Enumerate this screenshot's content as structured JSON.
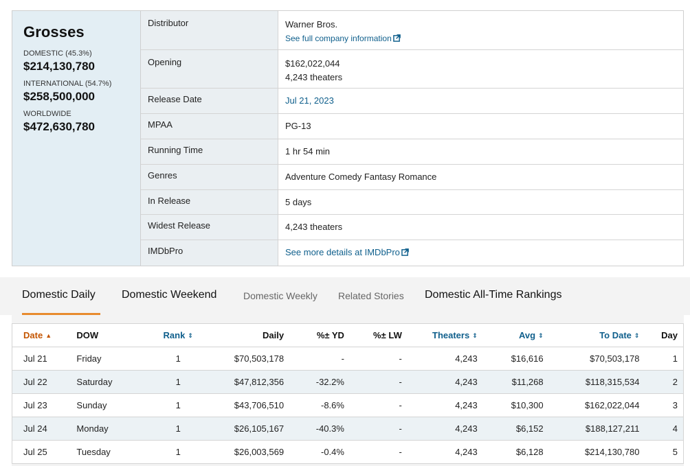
{
  "grosses": {
    "title": "Grosses",
    "domestic_label": "DOMESTIC (45.3%)",
    "domestic_value": "$214,130,780",
    "international_label": "INTERNATIONAL (54.7%)",
    "international_value": "$258,500,000",
    "worldwide_label": "WORLDWIDE",
    "worldwide_value": "$472,630,780"
  },
  "info": {
    "distributor_label": "Distributor",
    "distributor_value": "Warner Bros.",
    "distributor_link": "See full company information",
    "opening_label": "Opening",
    "opening_value": "$162,022,044",
    "opening_theaters": "4,243 theaters",
    "release_label": "Release Date",
    "release_value": "Jul 21, 2023",
    "mpaa_label": "MPAA",
    "mpaa_value": "PG-13",
    "running_label": "Running Time",
    "running_value": "1 hr 54 min",
    "genres_label": "Genres",
    "genres_value": "Adventure Comedy Fantasy Romance",
    "inrelease_label": "In Release",
    "inrelease_value": "5 days",
    "widest_label": "Widest Release",
    "widest_value": "4,243 theaters",
    "imdbpro_label": "IMDbPro",
    "imdbpro_link": "See more details at IMDbPro"
  },
  "tabs": {
    "domestic_daily": "Domestic Daily",
    "domestic_weekend": "Domestic Weekend",
    "domestic_weekly": "Domestic Weekly",
    "related_stories": "Related Stories",
    "alltime_rankings": "Domestic All-Time Rankings"
  },
  "table": {
    "headers": {
      "date": "Date",
      "dow": "DOW",
      "rank": "Rank",
      "daily": "Daily",
      "pct_yd": "%± YD",
      "pct_lw": "%± LW",
      "theaters": "Theaters",
      "avg": "Avg",
      "to_date": "To Date",
      "day": "Day"
    },
    "rows": [
      {
        "date": "Jul 21",
        "dow": "Friday",
        "rank": "1",
        "daily": "$70,503,178",
        "pct_yd": "-",
        "pct_lw": "-",
        "theaters": "4,243",
        "avg": "$16,616",
        "to_date": "$70,503,178",
        "day": "1"
      },
      {
        "date": "Jul 22",
        "dow": "Saturday",
        "rank": "1",
        "daily": "$47,812,356",
        "pct_yd": "-32.2%",
        "pct_lw": "-",
        "theaters": "4,243",
        "avg": "$11,268",
        "to_date": "$118,315,534",
        "day": "2"
      },
      {
        "date": "Jul 23",
        "dow": "Sunday",
        "rank": "1",
        "daily": "$43,706,510",
        "pct_yd": "-8.6%",
        "pct_lw": "-",
        "theaters": "4,243",
        "avg": "$10,300",
        "to_date": "$162,022,044",
        "day": "3"
      },
      {
        "date": "Jul 24",
        "dow": "Monday",
        "rank": "1",
        "daily": "$26,105,167",
        "pct_yd": "-40.3%",
        "pct_lw": "-",
        "theaters": "4,243",
        "avg": "$6,152",
        "to_date": "$188,127,211",
        "day": "4"
      },
      {
        "date": "Jul 25",
        "dow": "Tuesday",
        "rank": "1",
        "daily": "$26,003,569",
        "pct_yd": "-0.4%",
        "pct_lw": "-",
        "theaters": "4,243",
        "avg": "$6,128",
        "to_date": "$214,130,780",
        "day": "5"
      }
    ]
  },
  "colors": {
    "accent": "#e88b2e",
    "link": "#0f5f8c",
    "negative": "#c41a16",
    "grosses_bg": "#e3eef4"
  },
  "icons": {
    "external_link": "external-link-icon",
    "sort_up": "sort-ascending-icon",
    "sort_both": "sort-both-icon"
  }
}
